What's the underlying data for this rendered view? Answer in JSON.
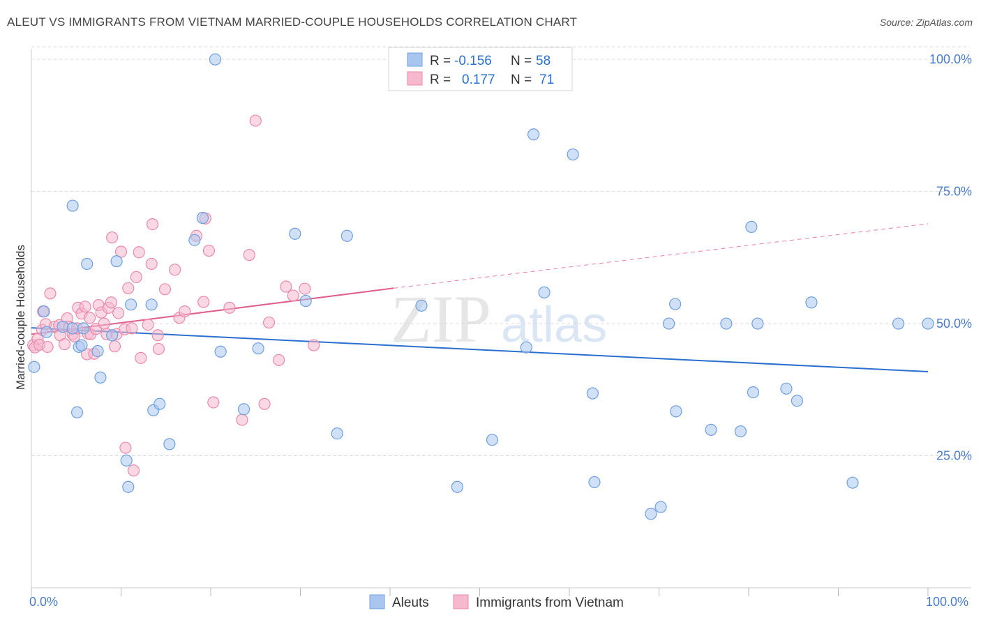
{
  "header": {
    "title": "ALEUT VS IMMIGRANTS FROM VIETNAM MARRIED-COUPLE HOUSEHOLDS CORRELATION CHART",
    "source": "Source: ZipAtlas.com"
  },
  "watermark": {
    "zip": "ZIP",
    "atlas": "atlas"
  },
  "colors": {
    "blue_fill": "#a9c6ef",
    "blue_stroke": "#6f9fe0",
    "blue_line": "#2a6fcf",
    "pink_fill": "#f6b8cc",
    "pink_stroke": "#ea8aab",
    "pink_line": "#e0608c",
    "axis_text": "#4a7cc9",
    "grid": "#d9d9d9"
  },
  "legend": {
    "rows": [
      {
        "r_label": "R =",
        "r_value": "-0.156",
        "n_label": "N =",
        "n_value": "58"
      },
      {
        "r_label": "R =",
        "r_value": "0.177",
        "n_label": "N =",
        "n_value": "71"
      }
    ]
  },
  "chart_data": {
    "type": "scatter",
    "title": "ALEUT VS IMMIGRANTS FROM VIETNAM MARRIED-COUPLE HOUSEHOLDS CORRELATION CHART",
    "xlabel": "",
    "ylabel": "Married-couple Households",
    "xlim": [
      0,
      100
    ],
    "ylim": [
      0,
      102
    ],
    "x_tick_labels": [
      "0.0%",
      "100.0%"
    ],
    "y_ticks": [
      25,
      50,
      75,
      100
    ],
    "y_tick_labels": [
      "25.0%",
      "50.0%",
      "75.0%",
      "100.0%"
    ],
    "series": [
      {
        "name": "Aleuts",
        "r": -0.156,
        "n": 58,
        "trend": {
          "x": [
            0,
            100
          ],
          "y": [
            49.2,
            40.9
          ]
        },
        "points": [
          [
            0.3,
            41.8
          ],
          [
            1.4,
            52.3
          ],
          [
            1.7,
            48.4
          ],
          [
            3.5,
            49.4
          ],
          [
            4.6,
            49.1
          ],
          [
            5.1,
            33.2
          ],
          [
            4.6,
            72.3
          ],
          [
            5.3,
            45.6
          ],
          [
            5.8,
            49.1
          ],
          [
            5.6,
            45.9
          ],
          [
            6.2,
            61.3
          ],
          [
            7.4,
            44.8
          ],
          [
            7.7,
            39.8
          ],
          [
            9.0,
            47.8
          ],
          [
            9.5,
            61.8
          ],
          [
            10.6,
            24.1
          ],
          [
            10.8,
            19.1
          ],
          [
            11.1,
            53.6
          ],
          [
            13.4,
            53.6
          ],
          [
            13.6,
            33.6
          ],
          [
            14.3,
            34.8
          ],
          [
            15.4,
            27.2
          ],
          [
            18.2,
            65.8
          ],
          [
            19.1,
            70.0
          ],
          [
            20.5,
            100.0
          ],
          [
            21.1,
            44.7
          ],
          [
            23.7,
            33.8
          ],
          [
            25.3,
            45.3
          ],
          [
            29.4,
            67.0
          ],
          [
            30.6,
            54.3
          ],
          [
            34.1,
            29.2
          ],
          [
            35.2,
            66.6
          ],
          [
            43.5,
            53.4
          ],
          [
            47.5,
            19.1
          ],
          [
            51.4,
            28.0
          ],
          [
            55.2,
            45.5
          ],
          [
            56.0,
            85.8
          ],
          [
            57.2,
            55.9
          ],
          [
            60.4,
            82.0
          ],
          [
            62.6,
            36.8
          ],
          [
            62.8,
            20.0
          ],
          [
            69.1,
            14.0
          ],
          [
            70.2,
            15.3
          ],
          [
            71.1,
            50.0
          ],
          [
            71.8,
            53.7
          ],
          [
            71.9,
            33.4
          ],
          [
            75.8,
            29.9
          ],
          [
            77.5,
            50.0
          ],
          [
            79.1,
            29.6
          ],
          [
            80.3,
            68.3
          ],
          [
            80.5,
            37.0
          ],
          [
            81.0,
            50.0
          ],
          [
            84.2,
            37.7
          ],
          [
            85.4,
            35.4
          ],
          [
            87.0,
            54.0
          ],
          [
            91.6,
            19.9
          ],
          [
            96.7,
            50.0
          ],
          [
            100.0,
            50.0
          ]
        ]
      },
      {
        "name": "Immigrants from Vietnam",
        "r": 0.177,
        "n": 71,
        "trend": {
          "x": [
            0,
            40.4
          ],
          "y": [
            48.0,
            56.7
          ],
          "dashed_x": [
            40.4,
            100
          ],
          "dashed_y": [
            56.7,
            68.9
          ]
        },
        "points": [
          [
            0.2,
            45.9
          ],
          [
            0.4,
            45.5
          ],
          [
            0.7,
            47.1
          ],
          [
            0.9,
            46.0
          ],
          [
            1.2,
            48.8
          ],
          [
            1.6,
            49.9
          ],
          [
            1.8,
            45.6
          ],
          [
            2.1,
            55.7
          ],
          [
            2.6,
            49.4
          ],
          [
            3.1,
            49.7
          ],
          [
            3.2,
            47.8
          ],
          [
            3.7,
            46.1
          ],
          [
            4.0,
            51.0
          ],
          [
            4.2,
            49.4
          ],
          [
            4.6,
            48.0
          ],
          [
            4.8,
            47.6
          ],
          [
            5.1,
            49.1
          ],
          [
            5.2,
            53.0
          ],
          [
            5.6,
            51.9
          ],
          [
            6.0,
            53.2
          ],
          [
            6.2,
            44.2
          ],
          [
            6.3,
            48.1
          ],
          [
            6.5,
            51.1
          ],
          [
            6.6,
            48.0
          ],
          [
            7.0,
            44.3
          ],
          [
            7.2,
            49.0
          ],
          [
            7.5,
            53.5
          ],
          [
            7.8,
            52.1
          ],
          [
            8.1,
            50.0
          ],
          [
            8.4,
            48.0
          ],
          [
            8.6,
            53.0
          ],
          [
            8.9,
            54.0
          ],
          [
            9.0,
            66.3
          ],
          [
            9.3,
            45.7
          ],
          [
            9.5,
            48.0
          ],
          [
            9.7,
            52.0
          ],
          [
            10.0,
            63.6
          ],
          [
            10.4,
            48.9
          ],
          [
            10.8,
            56.7
          ],
          [
            11.2,
            49.1
          ],
          [
            11.7,
            58.8
          ],
          [
            12.0,
            63.5
          ],
          [
            12.2,
            43.5
          ],
          [
            13.0,
            49.8
          ],
          [
            13.4,
            61.3
          ],
          [
            13.5,
            68.8
          ],
          [
            14.1,
            47.8
          ],
          [
            14.2,
            45.2
          ],
          [
            14.9,
            56.5
          ],
          [
            16.0,
            60.2
          ],
          [
            16.5,
            51.1
          ],
          [
            17.1,
            52.3
          ],
          [
            18.4,
            66.6
          ],
          [
            19.2,
            54.1
          ],
          [
            19.4,
            69.9
          ],
          [
            19.8,
            63.8
          ],
          [
            20.3,
            35.1
          ],
          [
            22.1,
            53.0
          ],
          [
            23.5,
            31.8
          ],
          [
            24.3,
            63.0
          ],
          [
            25.0,
            88.4
          ],
          [
            26.0,
            34.8
          ],
          [
            26.5,
            50.2
          ],
          [
            27.6,
            43.1
          ],
          [
            28.4,
            57.0
          ],
          [
            29.2,
            55.3
          ],
          [
            30.5,
            56.6
          ],
          [
            31.5,
            45.9
          ],
          [
            10.5,
            26.5
          ],
          [
            11.4,
            22.2
          ],
          [
            1.3,
            52.3
          ]
        ]
      }
    ]
  },
  "bottom_legend": {
    "items": [
      "Aleuts",
      "Immigrants from Vietnam"
    ]
  }
}
